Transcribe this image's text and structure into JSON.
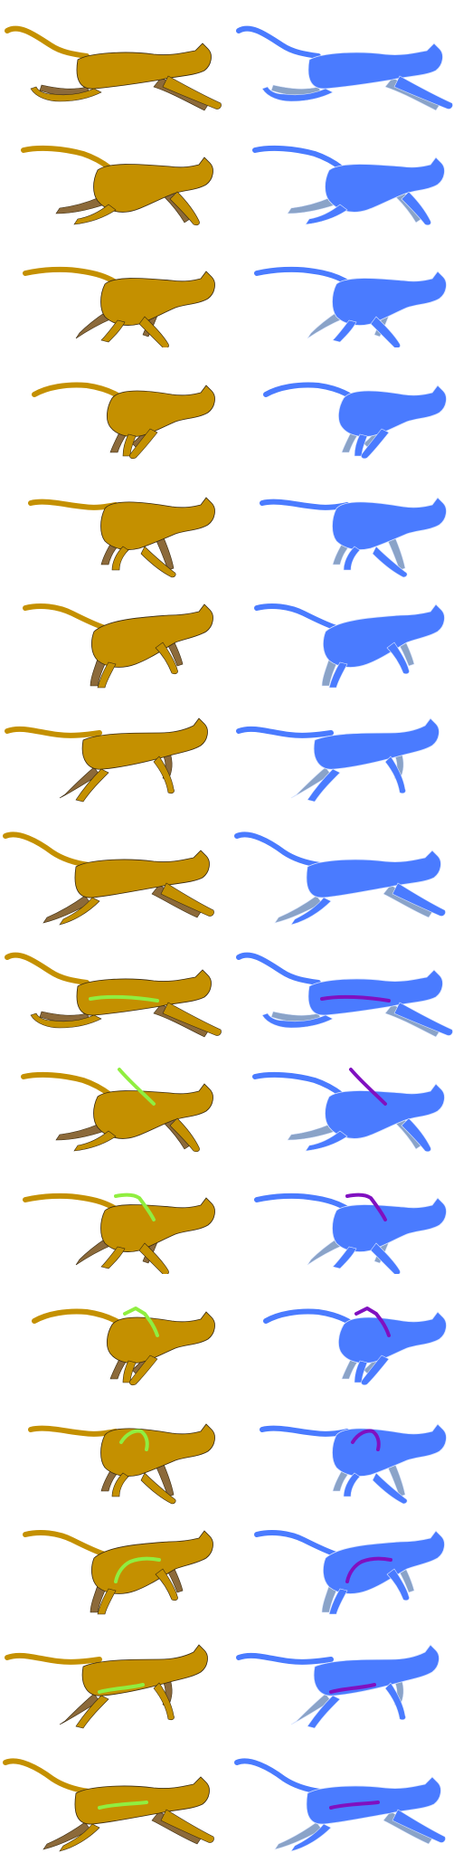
{
  "sheet": {
    "columns": [
      "tan-cougar",
      "blue-silhouette"
    ],
    "frame_count": 16,
    "colors": {
      "tan_body": "#C49000",
      "tan_back_limb": "#8C6A3A",
      "tan_outline": "#3A2A10",
      "tan_marker": "#90EE40",
      "blue_body": "#4A7BFF",
      "blue_back_limb": "#8AA3C8",
      "blue_outline": "#D8E4FF",
      "blue_marker": "#8010C0"
    },
    "frames": [
      {
        "pose": "stretch",
        "marker": "none"
      },
      {
        "pose": "gather",
        "marker": "none"
      },
      {
        "pose": "gather2",
        "marker": "none"
      },
      {
        "pose": "crouch",
        "marker": "none"
      },
      {
        "pose": "crouch2",
        "marker": "none"
      },
      {
        "pose": "push",
        "marker": "none"
      },
      {
        "pose": "extend",
        "marker": "none"
      },
      {
        "pose": "stretch2",
        "marker": "none"
      },
      {
        "pose": "stretch",
        "marker": "horizontal"
      },
      {
        "pose": "gather",
        "marker": "diagonal"
      },
      {
        "pose": "gather2",
        "marker": "hook"
      },
      {
        "pose": "crouch",
        "marker": "bracket"
      },
      {
        "pose": "crouch2",
        "marker": "arch"
      },
      {
        "pose": "push",
        "marker": "curve"
      },
      {
        "pose": "extend",
        "marker": "bend"
      },
      {
        "pose": "stretch2",
        "marker": "long"
      }
    ]
  }
}
